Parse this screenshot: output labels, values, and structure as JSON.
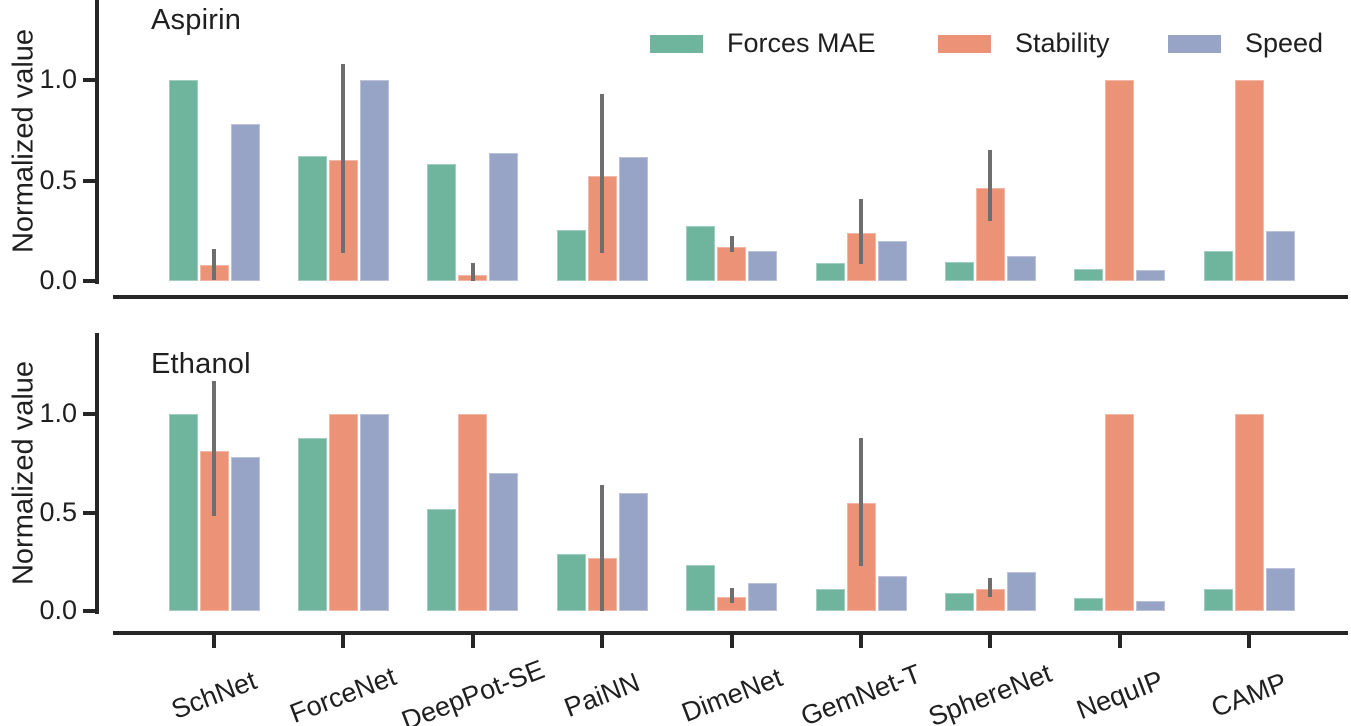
{
  "figure": {
    "legend": {
      "items": [
        {
          "label": "Forces MAE",
          "color": "#6fb49d"
        },
        {
          "label": "Stability",
          "color": "#ec9277"
        },
        {
          "label": "Speed",
          "color": "#98a4c5"
        }
      ]
    },
    "colors": {
      "forces_mae": "#6fb49d",
      "stability": "#ec9277",
      "speed": "#98a4c5",
      "error_bar": "#6e6e6e",
      "axis": "#262626"
    }
  },
  "chart_data": [
    {
      "type": "bar",
      "title": "Aspirin",
      "ylabel": "Normalized value",
      "xlabel": "",
      "ylim": [
        0,
        1.4
      ],
      "yticks": [
        0.0,
        0.5,
        1.0
      ],
      "grid": false,
      "legend_position": "top",
      "categories": [
        "SchNet",
        "ForceNet",
        "DeepPot-SE",
        "PaiNN",
        "DimeNet",
        "GemNet-T",
        "SphereNet",
        "NequIP",
        "CAMP"
      ],
      "series": [
        {
          "name": "Forces MAE",
          "color": "#6fb49d",
          "values": [
            1.0,
            0.62,
            0.58,
            0.255,
            0.275,
            0.09,
            0.095,
            0.06,
            0.15
          ]
        },
        {
          "name": "Stability",
          "color": "#ec9277",
          "values": [
            0.08,
            0.6,
            0.03,
            0.52,
            0.17,
            0.24,
            0.465,
            1.0,
            1.0
          ],
          "error_low": [
            0.005,
            0.14,
            0.0,
            0.14,
            0.145,
            0.085,
            0.3,
            null,
            null
          ],
          "error_high": [
            0.16,
            1.08,
            0.09,
            0.93,
            0.225,
            0.41,
            0.65,
            null,
            null
          ]
        },
        {
          "name": "Speed",
          "color": "#98a4c5",
          "values": [
            0.78,
            1.0,
            0.635,
            0.615,
            0.15,
            0.2,
            0.125,
            0.055,
            0.25
          ]
        }
      ]
    },
    {
      "type": "bar",
      "title": "Ethanol",
      "ylabel": "Normalized value",
      "xlabel": "",
      "ylim": [
        0,
        1.4
      ],
      "yticks": [
        0.0,
        0.5,
        1.0
      ],
      "grid": false,
      "legend_position": "none",
      "categories": [
        "SchNet",
        "ForceNet",
        "DeepPot-SE",
        "PaiNN",
        "DimeNet",
        "GemNet-T",
        "SphereNet",
        "NequIP",
        "CAMP"
      ],
      "series": [
        {
          "name": "Forces MAE",
          "color": "#6fb49d",
          "values": [
            1.0,
            0.88,
            0.52,
            0.29,
            0.235,
            0.11,
            0.09,
            0.065,
            0.11
          ]
        },
        {
          "name": "Stability",
          "color": "#ec9277",
          "values": [
            0.81,
            1.0,
            1.0,
            0.27,
            0.07,
            0.55,
            0.11,
            1.0,
            1.0
          ],
          "error_low": [
            0.48,
            null,
            null,
            0.0,
            0.04,
            0.23,
            0.07,
            null,
            null
          ],
          "error_high": [
            1.17,
            null,
            null,
            0.64,
            0.115,
            0.88,
            0.17,
            null,
            null
          ]
        },
        {
          "name": "Speed",
          "color": "#98a4c5",
          "values": [
            0.78,
            1.0,
            0.7,
            0.6,
            0.14,
            0.18,
            0.2,
            0.05,
            0.22
          ]
        }
      ]
    }
  ]
}
